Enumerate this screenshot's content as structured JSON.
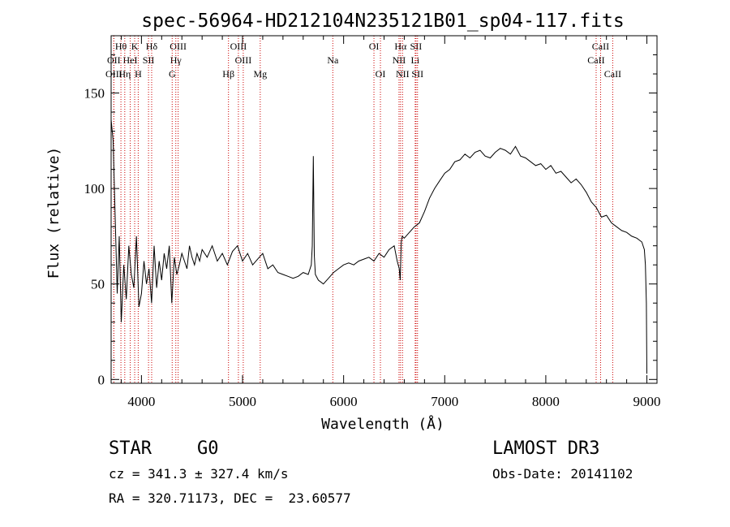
{
  "colors": {
    "spectrum": "#000000",
    "line_marker": "#cc0000",
    "axes": "#000000",
    "background": "#ffffff"
  },
  "chart_data": {
    "type": "line",
    "title": "spec-56964-HD212104N235121B01_sp04-117.fits",
    "xlabel": "Wavelength (Å)",
    "ylabel": "Flux (relative)",
    "xlim": [
      3700,
      9100
    ],
    "ylim": [
      -2,
      180
    ],
    "xticks": [
      4000,
      5000,
      6000,
      7000,
      8000,
      9000
    ],
    "yticks": [
      0,
      50,
      100,
      150
    ],
    "grid": false,
    "series": [
      {
        "name": "flux",
        "x": [
          3700,
          3720,
          3740,
          3760,
          3780,
          3800,
          3825,
          3850,
          3875,
          3900,
          3925,
          3950,
          3975,
          4000,
          4025,
          4050,
          4075,
          4100,
          4125,
          4150,
          4175,
          4200,
          4225,
          4250,
          4275,
          4300,
          4325,
          4350,
          4375,
          4400,
          4425,
          4450,
          4475,
          4500,
          4525,
          4550,
          4575,
          4600,
          4650,
          4700,
          4750,
          4800,
          4850,
          4900,
          4950,
          5000,
          5050,
          5100,
          5150,
          5200,
          5250,
          5300,
          5350,
          5400,
          5450,
          5500,
          5550,
          5600,
          5650,
          5680,
          5690,
          5700,
          5710,
          5720,
          5750,
          5800,
          5850,
          5900,
          5950,
          6000,
          6050,
          6100,
          6150,
          6200,
          6250,
          6300,
          6350,
          6400,
          6450,
          6500,
          6530,
          6550,
          6560,
          6570,
          6580,
          6600,
          6650,
          6700,
          6750,
          6800,
          6850,
          6900,
          6950,
          7000,
          7050,
          7100,
          7150,
          7200,
          7250,
          7300,
          7350,
          7400,
          7450,
          7500,
          7550,
          7600,
          7650,
          7700,
          7750,
          7800,
          7850,
          7900,
          7950,
          8000,
          8050,
          8100,
          8150,
          8200,
          8250,
          8300,
          8350,
          8400,
          8450,
          8500,
          8550,
          8600,
          8650,
          8700,
          8750,
          8800,
          8850,
          8900,
          8950,
          8975,
          8985,
          8995,
          9000
        ],
        "y": [
          136,
          125,
          85,
          45,
          75,
          30,
          60,
          42,
          70,
          55,
          48,
          75,
          38,
          45,
          62,
          50,
          58,
          40,
          70,
          48,
          62,
          52,
          66,
          58,
          70,
          40,
          64,
          55,
          60,
          66,
          62,
          58,
          70,
          64,
          60,
          66,
          62,
          68,
          64,
          70,
          62,
          66,
          60,
          67,
          70,
          62,
          66,
          60,
          63,
          66,
          58,
          60,
          56,
          55,
          54,
          53,
          54,
          56,
          55,
          60,
          70,
          117,
          65,
          55,
          52,
          50,
          53,
          56,
          58,
          60,
          61,
          60,
          62,
          63,
          64,
          62,
          66,
          64,
          68,
          70,
          62,
          58,
          52,
          72,
          75,
          74,
          77,
          80,
          82,
          88,
          95,
          100,
          104,
          108,
          110,
          114,
          115,
          118,
          116,
          119,
          120,
          117,
          116,
          119,
          121,
          120,
          118,
          122,
          117,
          116,
          114,
          112,
          113,
          110,
          112,
          108,
          109,
          106,
          103,
          105,
          102,
          98,
          93,
          90,
          85,
          86,
          82,
          80,
          78,
          77,
          75,
          74,
          72,
          68,
          60,
          40,
          3
        ]
      }
    ],
    "line_markers": [
      {
        "label": "Hθ",
        "x": 3797,
        "row": 1
      },
      {
        "label": "OII",
        "x": 3727,
        "row": 2
      },
      {
        "label": "OIII",
        "x": 3727,
        "row": 3
      },
      {
        "label": "HeI",
        "x": 3889,
        "row": 2
      },
      {
        "label": "Hη",
        "x": 3835,
        "row": 3
      },
      {
        "label": "K",
        "x": 3933,
        "row": 1
      },
      {
        "label": "H",
        "x": 3968,
        "row": 3
      },
      {
        "label": "Hδ",
        "x": 4101,
        "row": 1
      },
      {
        "label": "SII",
        "x": 4070,
        "row": 2
      },
      {
        "label": "OIII",
        "x": 4363,
        "row": 1
      },
      {
        "label": "Hγ",
        "x": 4340,
        "row": 2
      },
      {
        "label": "G",
        "x": 4304,
        "row": 3
      },
      {
        "label": "Hβ",
        "x": 4861,
        "row": 3
      },
      {
        "label": "OIII",
        "x": 4959,
        "row": 1
      },
      {
        "label": "OIII",
        "x": 5007,
        "row": 2
      },
      {
        "label": "Mg",
        "x": 5175,
        "row": 3
      },
      {
        "label": "Na",
        "x": 5893,
        "row": 2
      },
      {
        "label": "OI",
        "x": 6300,
        "row": 1
      },
      {
        "label": "OI",
        "x": 6364,
        "row": 3
      },
      {
        "label": "Hα",
        "x": 6563,
        "row": 1
      },
      {
        "label": "NII",
        "x": 6548,
        "row": 2
      },
      {
        "label": "NII",
        "x": 6583,
        "row": 3
      },
      {
        "label": "SII",
        "x": 6716,
        "row": 1
      },
      {
        "label": "Li",
        "x": 6708,
        "row": 2
      },
      {
        "label": "SII",
        "x": 6731,
        "row": 3
      },
      {
        "label": "CaII",
        "x": 8542,
        "row": 1
      },
      {
        "label": "CaII",
        "x": 8498,
        "row": 2
      },
      {
        "label": "CaII",
        "x": 8662,
        "row": 3
      }
    ]
  },
  "info": {
    "object_class": "STAR",
    "subclass": "G0",
    "survey": "LAMOST DR3",
    "cz": "cz = 341.3 ± 327.4 km/s",
    "obs_date": "Obs-Date: 20141102",
    "coords": "RA = 320.71173, DEC =  23.60577"
  }
}
